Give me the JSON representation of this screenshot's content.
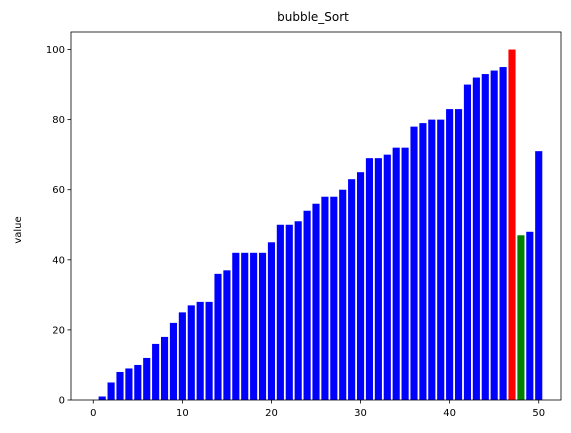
{
  "chart_data": {
    "type": "bar",
    "title": "bubble_Sort",
    "xlabel": "",
    "ylabel": "value",
    "xlim": [
      -2.5,
      52.5
    ],
    "ylim": [
      0,
      105
    ],
    "x": [
      0,
      1,
      2,
      3,
      4,
      5,
      6,
      7,
      8,
      9,
      10,
      11,
      12,
      13,
      14,
      15,
      16,
      17,
      18,
      19,
      20,
      21,
      22,
      23,
      24,
      25,
      26,
      27,
      28,
      29,
      30,
      31,
      32,
      33,
      34,
      35,
      36,
      37,
      38,
      39,
      40,
      41,
      42,
      43,
      44,
      45,
      46,
      47,
      48,
      49,
      50
    ],
    "values": [
      0,
      1,
      5,
      8,
      9,
      10,
      12,
      16,
      18,
      22,
      25,
      27,
      28,
      28,
      36,
      37,
      42,
      42,
      42,
      42,
      45,
      50,
      50,
      51,
      54,
      56,
      58,
      58,
      60,
      63,
      65,
      69,
      69,
      70,
      72,
      72,
      78,
      79,
      80,
      80,
      83,
      83,
      90,
      92,
      93,
      94,
      95,
      100,
      47,
      48,
      71
    ],
    "bar_colors": [
      "#0000ff",
      "#0000ff",
      "#0000ff",
      "#0000ff",
      "#0000ff",
      "#0000ff",
      "#0000ff",
      "#0000ff",
      "#0000ff",
      "#0000ff",
      "#0000ff",
      "#0000ff",
      "#0000ff",
      "#0000ff",
      "#0000ff",
      "#0000ff",
      "#0000ff",
      "#0000ff",
      "#0000ff",
      "#0000ff",
      "#0000ff",
      "#0000ff",
      "#0000ff",
      "#0000ff",
      "#0000ff",
      "#0000ff",
      "#0000ff",
      "#0000ff",
      "#0000ff",
      "#0000ff",
      "#0000ff",
      "#0000ff",
      "#0000ff",
      "#0000ff",
      "#0000ff",
      "#0000ff",
      "#0000ff",
      "#0000ff",
      "#0000ff",
      "#0000ff",
      "#0000ff",
      "#0000ff",
      "#0000ff",
      "#0000ff",
      "#0000ff",
      "#0000ff",
      "#0000ff",
      "#ff0000",
      "#008000",
      "#0000ff",
      "#0000ff"
    ],
    "x_ticks": [
      0,
      10,
      20,
      30,
      40,
      50
    ],
    "y_ticks": [
      0,
      20,
      40,
      60,
      80,
      100
    ],
    "grid": false
  }
}
